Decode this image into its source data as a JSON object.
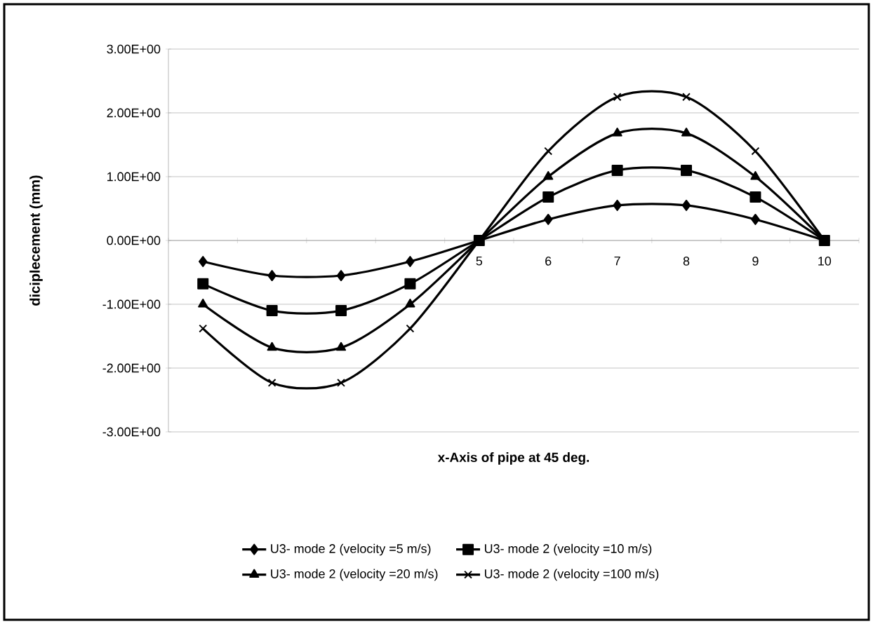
{
  "chart_data": {
    "type": "line",
    "xlabel": "x-Axis of pipe at 45 deg.",
    "ylabel": "diciplecement (mm)",
    "categories": [
      null,
      null,
      null,
      null,
      "5",
      "6",
      "7",
      "8",
      "9",
      "10"
    ],
    "series": [
      {
        "name": "U3- mode 2 (velocity =5 m/s)",
        "color": "#000000",
        "marker": "diamond",
        "values": [
          -0.33,
          -0.55,
          -0.55,
          -0.33,
          0,
          0.33,
          0.55,
          0.55,
          0.33,
          0
        ]
      },
      {
        "name": "U3- mode 2 (velocity =10 m/s)",
        "color": "#000000",
        "marker": "square",
        "values": [
          -0.68,
          -1.1,
          -1.1,
          -0.68,
          0,
          0.68,
          1.1,
          1.1,
          0.68,
          0
        ]
      },
      {
        "name": "U3- mode 2 (velocity =20 m/s)",
        "color": "#000000",
        "marker": "triangle",
        "values": [
          -1.0,
          -1.68,
          -1.68,
          -1.0,
          0,
          1.0,
          1.68,
          1.68,
          1.0,
          0
        ]
      },
      {
        "name": "U3- mode 2 (velocity =100 m/s)",
        "color": "#000000",
        "marker": "cross",
        "values": [
          -1.38,
          -2.23,
          -2.23,
          -1.38,
          0,
          1.4,
          2.25,
          2.25,
          1.4,
          0
        ]
      }
    ],
    "ylim": [
      -3,
      3
    ],
    "yticks": [
      {
        "value": -3,
        "label": "-3.00E+00"
      },
      {
        "value": -2,
        "label": "-2.00E+00"
      },
      {
        "value": -1,
        "label": "-1.00E+00"
      },
      {
        "value": 0,
        "label": "0.00E+00"
      },
      {
        "value": 1,
        "label": "1.00E+00"
      },
      {
        "value": 2,
        "label": "2.00E+00"
      },
      {
        "value": 3,
        "label": "3.00E+00"
      }
    ],
    "grid": "y",
    "legend": "bottom",
    "line_style": "solid"
  }
}
